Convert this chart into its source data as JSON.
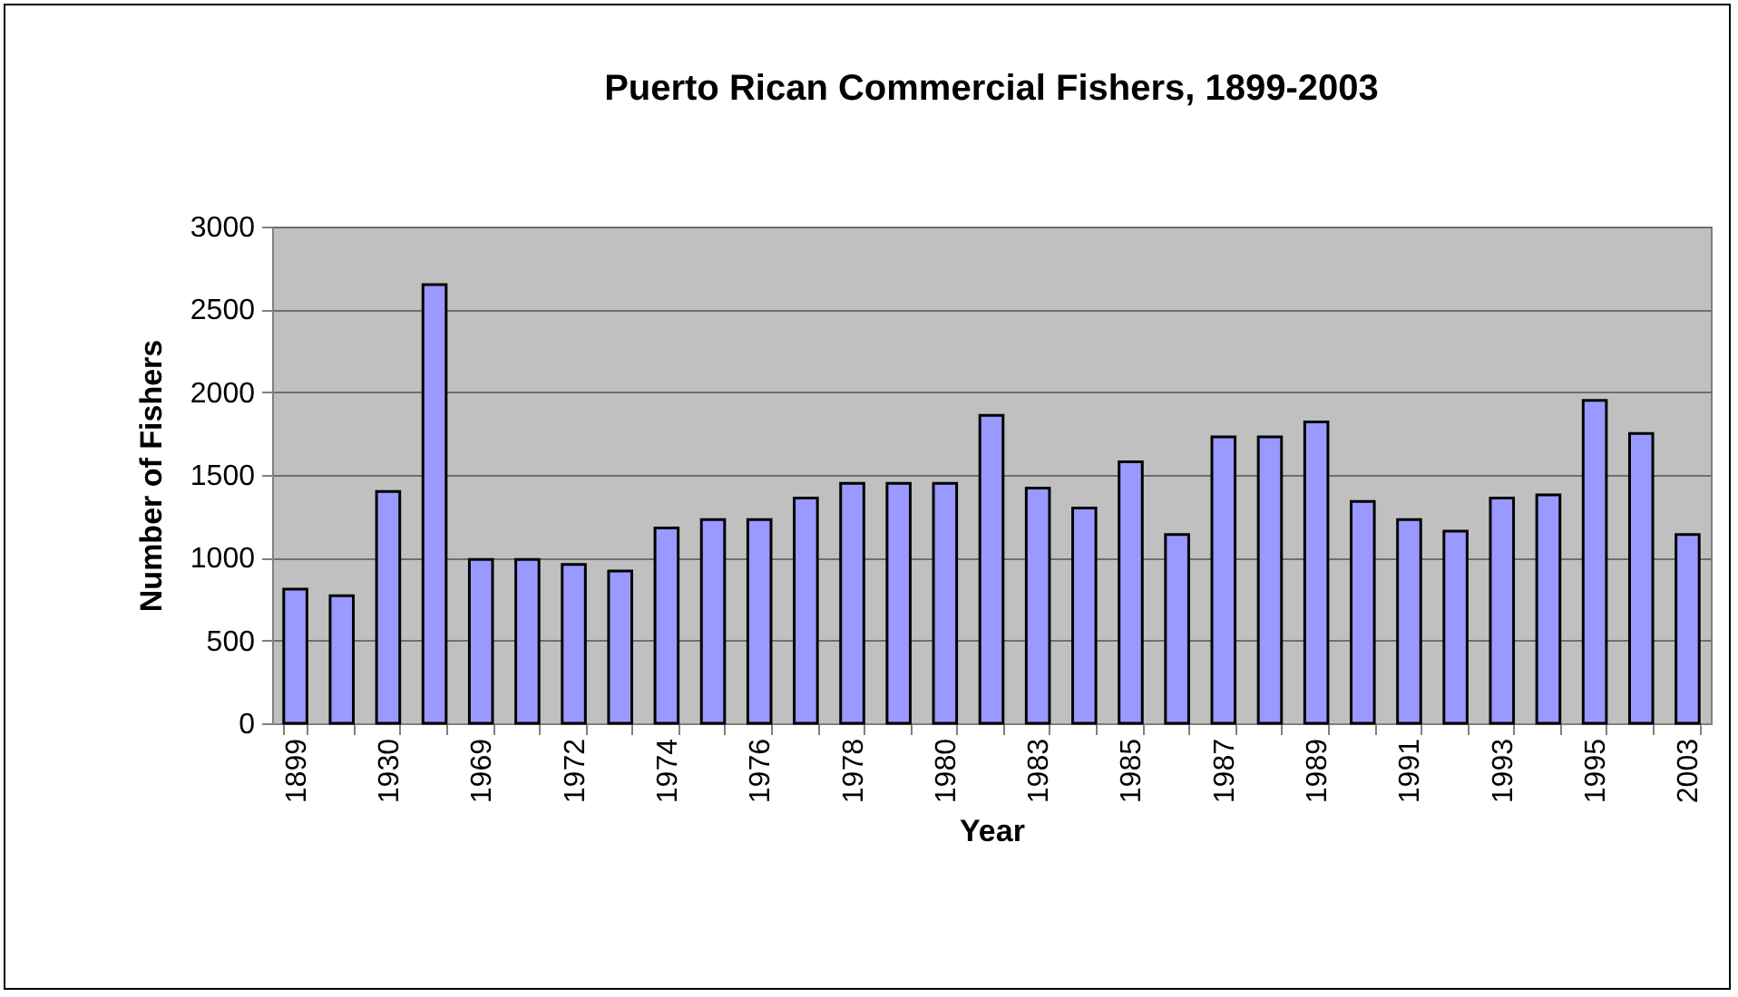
{
  "chart_data": {
    "type": "bar",
    "title": "Puerto Rican Commercial Fishers, 1899-2003",
    "xlabel": "Year",
    "ylabel": "Number of Fishers",
    "categories": [
      "1899",
      null,
      "1930",
      null,
      "1969",
      null,
      "1972",
      null,
      "1974",
      null,
      "1976",
      null,
      "1978",
      null,
      "1980",
      null,
      "1983",
      null,
      "1985",
      null,
      "1987",
      null,
      "1989",
      null,
      "1991",
      null,
      "1993",
      null,
      "1995",
      null,
      "2003"
    ],
    "values": [
      810,
      770,
      1400,
      2650,
      990,
      990,
      960,
      920,
      1180,
      1230,
      1230,
      1360,
      1450,
      1450,
      1450,
      1860,
      1420,
      1300,
      1580,
      1140,
      1730,
      1730,
      1820,
      1340,
      1230,
      1160,
      1360,
      1380,
      1950,
      1750,
      1140
    ],
    "color": "#9999ff",
    "ylim": [
      0,
      3000
    ],
    "yticks": [
      0,
      500,
      1000,
      1500,
      2000,
      2500,
      3000
    ],
    "grid": "y"
  }
}
